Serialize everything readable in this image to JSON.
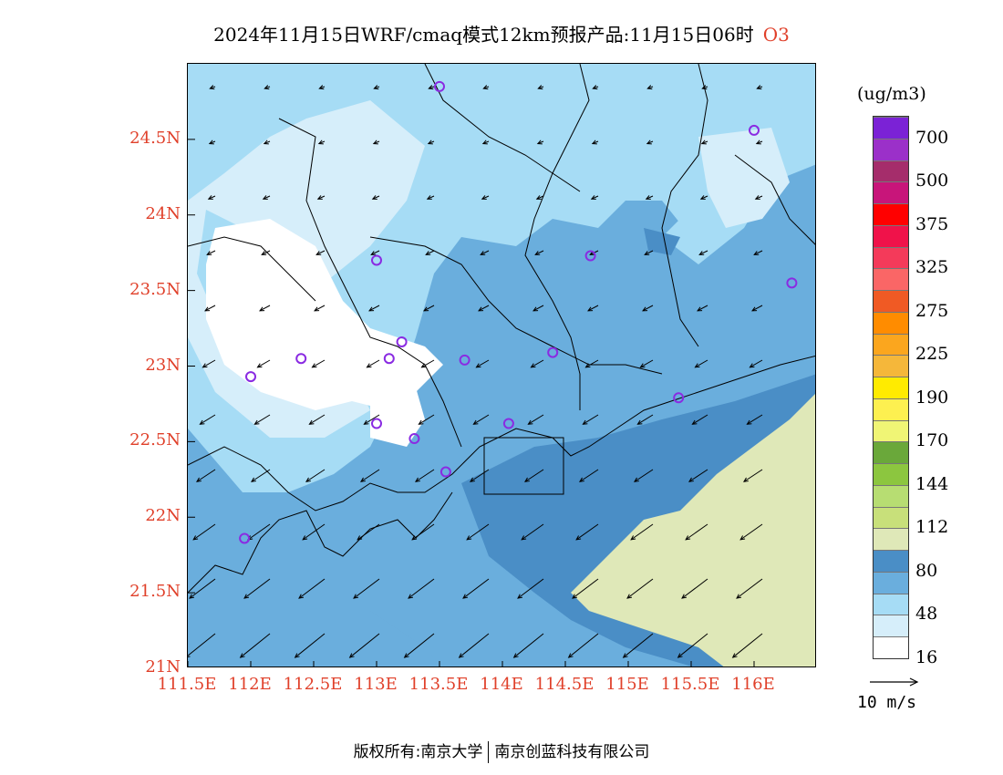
{
  "title": {
    "text": "2024年11月15日WRF/cmaq模式12km预报产品:11月15日06时",
    "species": "O3"
  },
  "map": {
    "lon_ticks": [
      "111.5E",
      "112E",
      "112.5E",
      "113E",
      "113.5E",
      "114E",
      "114.5E",
      "115E",
      "115.5E",
      "116E"
    ],
    "lat_ticks": [
      "24.5N",
      "24N",
      "23.5N",
      "23N",
      "22.5N",
      "22N",
      "21.5N",
      "21N"
    ],
    "lon_range": [
      111.5,
      116.5
    ],
    "lat_range": [
      21.0,
      25.0
    ],
    "stations": [
      {
        "lon": 113.5,
        "lat": 24.85
      },
      {
        "lon": 116.0,
        "lat": 24.56
      },
      {
        "lon": 113.0,
        "lat": 23.7
      },
      {
        "lon": 114.7,
        "lat": 23.73
      },
      {
        "lon": 116.3,
        "lat": 23.55
      },
      {
        "lon": 113.2,
        "lat": 23.16
      },
      {
        "lon": 112.4,
        "lat": 23.05
      },
      {
        "lon": 113.1,
        "lat": 23.05
      },
      {
        "lon": 113.7,
        "lat": 23.04
      },
      {
        "lon": 114.4,
        "lat": 23.09
      },
      {
        "lon": 112.0,
        "lat": 22.93
      },
      {
        "lon": 115.4,
        "lat": 22.79
      },
      {
        "lon": 113.0,
        "lat": 22.62
      },
      {
        "lon": 113.3,
        "lat": 22.52
      },
      {
        "lon": 114.05,
        "lat": 22.62
      },
      {
        "lon": 113.55,
        "lat": 22.3
      },
      {
        "lon": 111.95,
        "lat": 21.86
      }
    ],
    "station_color": "#8a2be2"
  },
  "colorbar": {
    "unit": "(ug/m3)",
    "levels": [
      "700",
      "500",
      "375",
      "325",
      "275",
      "225",
      "190",
      "170",
      "144",
      "112",
      "80",
      "48",
      "16"
    ],
    "colors": [
      "#7b22d6",
      "#9b30c9",
      "#a52d6b",
      "#c8157a",
      "#ff0000",
      "#f0124a",
      "#f43a5a",
      "#fa6666",
      "#f05a24",
      "#ff8c00",
      "#fba61e",
      "#f5b73a",
      "#ffeb00",
      "#fdf050",
      "#f0f575",
      "#6aa83a",
      "#8cc63f",
      "#b7dd72",
      "#c8e07a",
      "#dfe8b8",
      "#4a8ec6",
      "#6aaedd",
      "#a6dcf5",
      "#d6eefa",
      "#ffffff"
    ]
  },
  "wind": {
    "key_label": "10 m/s"
  },
  "footer": {
    "left": "版权所有:南京大学",
    "right": "南京创蓝科技有限公司"
  }
}
